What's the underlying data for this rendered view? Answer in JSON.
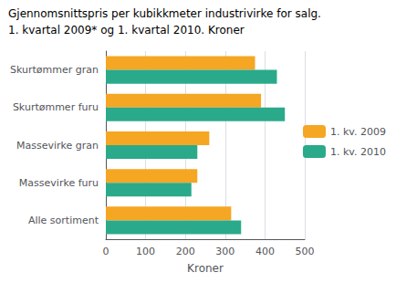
{
  "chart_data": {
    "type": "bar",
    "orientation": "horizontal",
    "title": "Gjennomsnittspris per kubikkmeter industrivirke for salg.",
    "subtitle": "1. kvartal 2009* og 1. kvartal 2010. Kroner",
    "categories": [
      "Skurtømmer gran",
      "Skurtømmer furu",
      "Massevirke gran",
      "Massevirke furu",
      "Alle sortiment"
    ],
    "series": [
      {
        "name": "1. kv. 2009",
        "color": "#f5a623",
        "values": [
          375,
          390,
          260,
          230,
          315
        ]
      },
      {
        "name": "1. kv. 2010",
        "color": "#2aaa8a",
        "values": [
          430,
          450,
          230,
          215,
          340
        ]
      }
    ],
    "xlabel": "Kroner",
    "xlim": [
      0,
      500
    ],
    "xticks": [
      0,
      100,
      200,
      300,
      400,
      500
    ],
    "grid": true,
    "legend": "right"
  }
}
